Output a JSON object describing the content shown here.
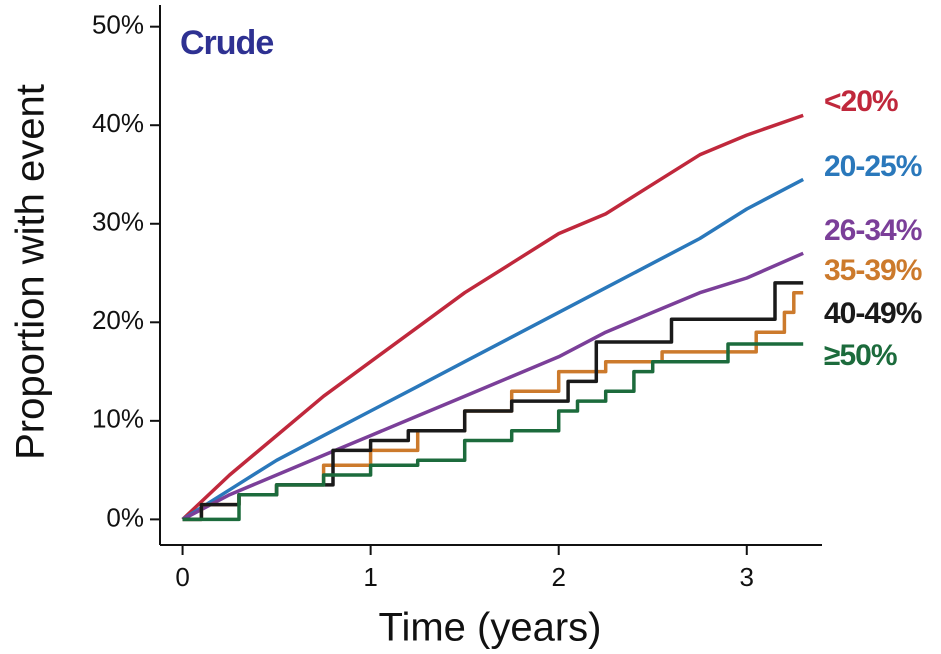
{
  "chart_data": {
    "type": "line",
    "title": "Crude",
    "x_label": "Time (years)",
    "y_label": "Proportion with event",
    "xlim": [
      -0.12,
      3.4
    ],
    "xticks": [
      0,
      1,
      2,
      3
    ],
    "ylim": [
      -2.6,
      52.2
    ],
    "yticks": [
      {
        "value": 0,
        "label": "0%"
      },
      {
        "value": 10,
        "label": "10%"
      },
      {
        "value": 20,
        "label": "20%"
      },
      {
        "value": 30,
        "label": "30%"
      },
      {
        "value": 40,
        "label": "40%"
      },
      {
        "value": 50,
        "label": "50%"
      }
    ],
    "series": [
      {
        "name": "<20%",
        "color": "#c0283c",
        "x": [
          0,
          0.25,
          0.5,
          0.75,
          1,
          1.25,
          1.5,
          1.75,
          2,
          2.25,
          2.5,
          2.75,
          3,
          3.3
        ],
        "values": [
          0,
          4.5,
          8.5,
          12.5,
          16,
          19.5,
          23,
          26,
          29,
          31,
          34,
          37,
          39,
          41
        ]
      },
      {
        "name": "20-25%",
        "color": "#2a78bb",
        "x": [
          0,
          0.25,
          0.5,
          0.75,
          1,
          1.25,
          1.5,
          1.75,
          2,
          2.25,
          2.5,
          2.75,
          3,
          3.3
        ],
        "values": [
          0,
          3,
          6,
          8.5,
          11,
          13.5,
          16,
          18.5,
          21,
          23.5,
          26,
          28.5,
          31.5,
          34.5
        ]
      },
      {
        "name": "26-34%",
        "color": "#7b3f99",
        "x": [
          0,
          0.25,
          0.5,
          0.75,
          1,
          1.25,
          1.5,
          1.75,
          2,
          2.25,
          2.5,
          2.75,
          3,
          3.3
        ],
        "values": [
          0,
          2.5,
          4.5,
          6.5,
          8.5,
          10.5,
          12.5,
          14.5,
          16.5,
          19,
          21,
          23,
          24.5,
          27
        ]
      },
      {
        "name": "35-39%",
        "color": "#cc7a2c",
        "x": [
          0,
          0.1,
          0.1,
          0.3,
          0.3,
          0.5,
          0.5,
          0.75,
          0.75,
          1,
          1,
          1.25,
          1.25,
          1.5,
          1.5,
          1.75,
          1.75,
          2,
          2,
          2.25,
          2.25,
          2.55,
          2.55,
          3.05,
          3.05,
          3.2,
          3.2,
          3.25,
          3.25,
          3.3
        ],
        "values": [
          0,
          0,
          1.5,
          1.5,
          2.5,
          2.5,
          3.5,
          3.5,
          5.5,
          5.5,
          7,
          7,
          9,
          9,
          11,
          11,
          13,
          13,
          15,
          15,
          16,
          16,
          17,
          17,
          19,
          19,
          21,
          21,
          23,
          23
        ]
      },
      {
        "name": "40-49%",
        "color": "#1a1a1a",
        "x": [
          0,
          0.1,
          0.1,
          0.3,
          0.3,
          0.5,
          0.5,
          0.8,
          0.8,
          1,
          1,
          1.2,
          1.2,
          1.5,
          1.5,
          1.75,
          1.75,
          2.05,
          2.05,
          2.2,
          2.2,
          2.6,
          2.6,
          3.15,
          3.15,
          3.3
        ],
        "values": [
          0,
          0,
          1.5,
          1.5,
          2.5,
          2.5,
          3.5,
          3.5,
          7,
          7,
          8,
          8,
          9,
          9,
          11,
          11,
          12,
          12,
          14,
          14,
          18,
          18,
          20.3,
          20.3,
          24,
          24
        ]
      },
      {
        "name": "≥50%",
        "color": "#1c6b3c",
        "x": [
          0,
          0.3,
          0.3,
          0.5,
          0.5,
          0.75,
          0.75,
          1,
          1,
          1.25,
          1.25,
          1.5,
          1.5,
          1.75,
          1.75,
          2,
          2,
          2.1,
          2.1,
          2.25,
          2.25,
          2.4,
          2.4,
          2.5,
          2.5,
          2.9,
          2.9,
          3.3
        ],
        "values": [
          0,
          0,
          2.5,
          2.5,
          3.5,
          3.5,
          4.5,
          4.5,
          5.5,
          5.5,
          6,
          6,
          8,
          8,
          9,
          9,
          11,
          11,
          12,
          12,
          13,
          13,
          15,
          15,
          16,
          16,
          17.8,
          17.8
        ]
      }
    ]
  }
}
